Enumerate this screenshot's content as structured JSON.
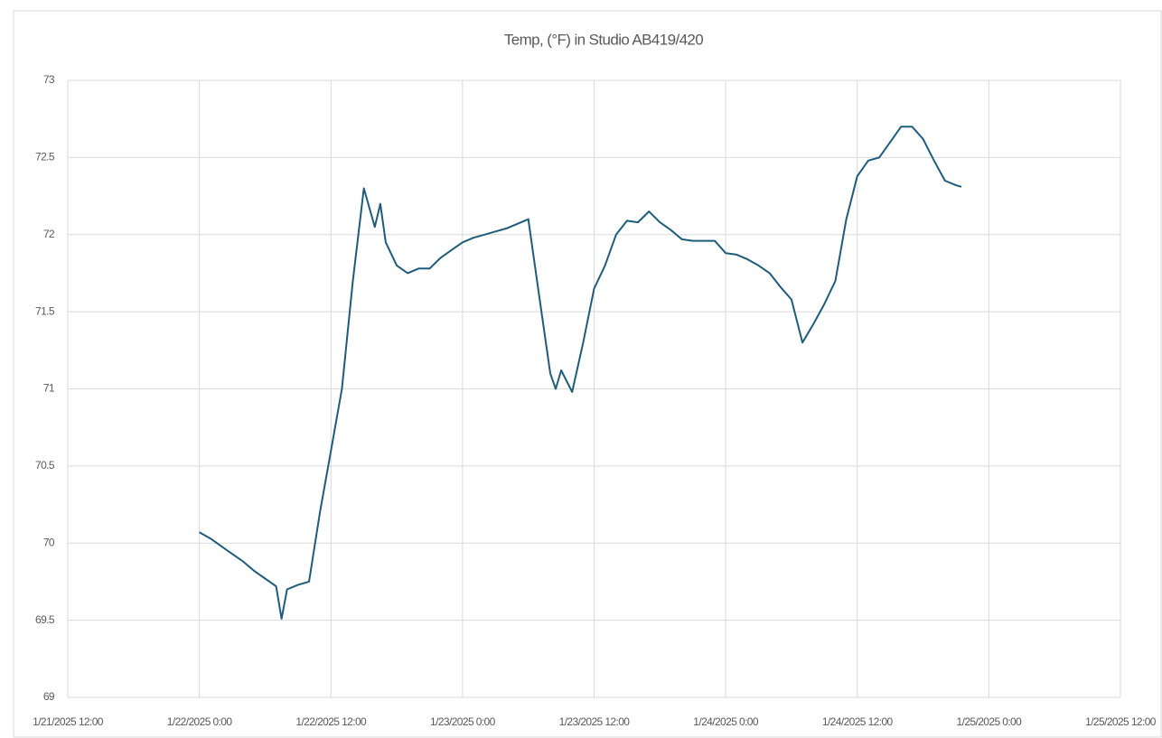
{
  "chart_data": {
    "type": "line",
    "title": "Temp, (°F) in Studio AB419/420",
    "x": [
      "2025-01-22T00:00",
      "2025-01-22T01:00",
      "2025-01-22T02:00",
      "2025-01-22T03:00",
      "2025-01-22T04:00",
      "2025-01-22T05:00",
      "2025-01-22T06:00",
      "2025-01-22T07:00",
      "2025-01-22T07:30",
      "2025-01-22T08:00",
      "2025-01-22T09:00",
      "2025-01-22T10:00",
      "2025-01-22T11:00",
      "2025-01-22T12:00",
      "2025-01-22T13:00",
      "2025-01-22T14:00",
      "2025-01-22T15:00",
      "2025-01-22T16:00",
      "2025-01-22T16:30",
      "2025-01-22T17:00",
      "2025-01-22T18:00",
      "2025-01-22T19:00",
      "2025-01-22T20:00",
      "2025-01-22T21:00",
      "2025-01-22T22:00",
      "2025-01-22T23:00",
      "2025-01-23T00:00",
      "2025-01-23T01:00",
      "2025-01-23T02:00",
      "2025-01-23T03:00",
      "2025-01-23T04:00",
      "2025-01-23T05:00",
      "2025-01-23T06:00",
      "2025-01-23T07:00",
      "2025-01-23T08:00",
      "2025-01-23T08:30",
      "2025-01-23T09:00",
      "2025-01-23T10:00",
      "2025-01-23T11:00",
      "2025-01-23T12:00",
      "2025-01-23T13:00",
      "2025-01-23T14:00",
      "2025-01-23T15:00",
      "2025-01-23T16:00",
      "2025-01-23T17:00",
      "2025-01-23T18:00",
      "2025-01-23T19:00",
      "2025-01-23T20:00",
      "2025-01-23T21:00",
      "2025-01-23T22:00",
      "2025-01-23T23:00",
      "2025-01-24T00:00",
      "2025-01-24T01:00",
      "2025-01-24T02:00",
      "2025-01-24T03:00",
      "2025-01-24T04:00",
      "2025-01-24T05:00",
      "2025-01-24T06:00",
      "2025-01-24T07:00",
      "2025-01-24T08:00",
      "2025-01-24T09:00",
      "2025-01-24T10:00",
      "2025-01-24T11:00",
      "2025-01-24T12:00",
      "2025-01-24T13:00",
      "2025-01-24T14:00",
      "2025-01-24T15:00",
      "2025-01-24T16:00",
      "2025-01-24T17:00",
      "2025-01-24T18:00",
      "2025-01-24T19:00",
      "2025-01-24T20:00",
      "2025-01-24T21:00",
      "2025-01-24T21:30"
    ],
    "series": [
      {
        "color": "#1f5c7a",
        "values": [
          70.07,
          70.03,
          69.98,
          69.93,
          69.88,
          69.82,
          69.77,
          69.72,
          69.51,
          69.7,
          69.73,
          69.75,
          70.2,
          70.6,
          71.0,
          71.7,
          72.3,
          72.05,
          72.2,
          71.95,
          71.8,
          71.75,
          71.78,
          71.78,
          71.85,
          71.9,
          71.95,
          71.98,
          72.0,
          72.02,
          72.04,
          72.07,
          72.1,
          71.6,
          71.1,
          71.0,
          71.12,
          70.98,
          71.3,
          71.65,
          71.8,
          72.0,
          72.09,
          72.08,
          72.15,
          72.08,
          72.03,
          71.97,
          71.96,
          71.96,
          71.96,
          71.88,
          71.87,
          71.84,
          71.8,
          71.75,
          71.66,
          71.58,
          71.3,
          71.42,
          71.55,
          71.7,
          72.1,
          72.38,
          72.48,
          72.5,
          72.6,
          72.7,
          72.7,
          72.62,
          72.48,
          72.35,
          72.32,
          72.31
        ]
      }
    ],
    "xlim": [
      "2025-01-21T12:00",
      "2025-01-25T12:00"
    ],
    "xticks": [
      {
        "value": "2025-01-21T12:00",
        "label": "1/21/2025 12:00"
      },
      {
        "value": "2025-01-22T00:00",
        "label": "1/22/2025 0:00"
      },
      {
        "value": "2025-01-22T12:00",
        "label": "1/22/2025 12:00"
      },
      {
        "value": "2025-01-23T00:00",
        "label": "1/23/2025 0:00"
      },
      {
        "value": "2025-01-23T12:00",
        "label": "1/23/2025 12:00"
      },
      {
        "value": "2025-01-24T00:00",
        "label": "1/24/2025 0:00"
      },
      {
        "value": "2025-01-24T12:00",
        "label": "1/24/2025 12:00"
      },
      {
        "value": "2025-01-25T00:00",
        "label": "1/25/2025 0:00"
      },
      {
        "value": "2025-01-25T12:00",
        "label": "1/25/2025 12:00"
      }
    ],
    "ylim": [
      69,
      73
    ],
    "yticks": [
      69,
      69.5,
      70,
      70.5,
      71,
      71.5,
      72,
      72.5,
      73
    ],
    "grid": true
  }
}
